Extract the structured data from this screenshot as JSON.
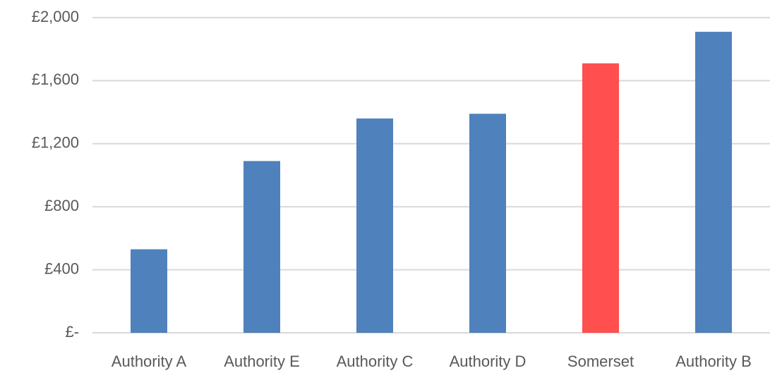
{
  "chart_data": {
    "type": "bar",
    "categories": [
      "Authority A",
      "Authority E",
      "Authority C",
      "Authority D",
      "Somerset",
      "Authority B"
    ],
    "values": [
      530,
      1090,
      1360,
      1390,
      1710,
      1910
    ],
    "colors": [
      "#4f81bd",
      "#4f81bd",
      "#4f81bd",
      "#4f81bd",
      "#ff4f4f",
      "#4f81bd"
    ],
    "ylim": [
      0,
      2000
    ],
    "yticks": [
      {
        "value": 0,
        "label": "£-"
      },
      {
        "value": 400,
        "label": "£400"
      },
      {
        "value": 800,
        "label": "£800"
      },
      {
        "value": 1200,
        "label": "£1,200"
      },
      {
        "value": 1600,
        "label": "£1,600"
      },
      {
        "value": 2000,
        "label": "£2,000"
      }
    ],
    "grid": true
  }
}
